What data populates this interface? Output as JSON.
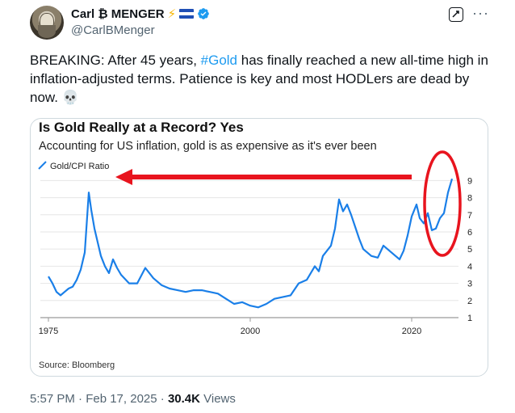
{
  "author": {
    "display_name": "Carl ₿ MENGER",
    "handle": "@CarlBMenger",
    "icons": [
      "lightning-icon",
      "el-salvador-flag-icon",
      "verified-badge-icon"
    ]
  },
  "tweet": {
    "text_before": "BREAKING: After 45 years, ",
    "hashtag": "#Gold",
    "text_after": " has finally reached a new all-time high in inflation-adjusted terms. Patience is key and most HODLers are dead by now. 💀"
  },
  "meta": {
    "time": "5:57 PM · Feb 17, 2025 · ",
    "views_count": "30.4K",
    "views_label": " Views"
  },
  "chart_data": {
    "type": "line",
    "title": "Is Gold Really at a Record? Yes",
    "subtitle": "Accounting for US inflation, gold is as expensive as it's ever been",
    "legend": "Gold/CPI Ratio",
    "source": "Source: Bloomberg",
    "x_ticks": [
      "1975",
      "2000",
      "2020"
    ],
    "x_tick_values": [
      1975,
      2000,
      2020
    ],
    "y_ticks": [
      "1",
      "2",
      "3",
      "4",
      "5",
      "6",
      "7",
      "8",
      "9"
    ],
    "ylim": [
      1,
      9.3
    ],
    "xlim": [
      1974,
      2025.3
    ],
    "series": [
      {
        "name": "Gold/CPI Ratio",
        "x": [
          1975,
          1975.5,
          1976,
          1976.5,
          1977,
          1977.5,
          1978,
          1978.5,
          1979,
          1979.5,
          1980,
          1980.3,
          1980.7,
          1981,
          1981.5,
          1982,
          1982.5,
          1983,
          1983.5,
          1984,
          1985,
          1986,
          1987,
          1988,
          1989,
          1990,
          1991,
          1992,
          1993,
          1994,
          1995,
          1996,
          1997,
          1998,
          1999,
          2000,
          2001,
          2002,
          2003,
          2004,
          2005,
          2006,
          2007,
          2008,
          2008.5,
          2009,
          2010,
          2010.5,
          2011,
          2011.5,
          2012,
          2012.5,
          2013,
          2013.5,
          2014,
          2015,
          2015.8,
          2016.5,
          2017,
          2018,
          2018.5,
          2019,
          2019.5,
          2020,
          2020.6,
          2021,
          2021.5,
          2022,
          2022.5,
          2023,
          2023.5,
          2024,
          2024.5,
          2025
        ],
        "y": [
          3.4,
          3.0,
          2.5,
          2.3,
          2.5,
          2.7,
          2.8,
          3.2,
          3.8,
          4.8,
          8.3,
          7.3,
          6.2,
          5.6,
          4.6,
          4.0,
          3.6,
          4.4,
          3.9,
          3.5,
          3.0,
          3.0,
          3.9,
          3.3,
          2.9,
          2.7,
          2.6,
          2.5,
          2.6,
          2.6,
          2.5,
          2.4,
          2.1,
          1.8,
          1.9,
          1.7,
          1.6,
          1.8,
          2.1,
          2.2,
          2.3,
          3.0,
          3.2,
          4.0,
          3.7,
          4.6,
          5.2,
          6.2,
          7.9,
          7.2,
          7.6,
          7.0,
          6.3,
          5.6,
          5.0,
          4.6,
          4.5,
          5.2,
          5.0,
          4.6,
          4.4,
          4.9,
          5.8,
          6.9,
          7.6,
          6.8,
          6.5,
          7.1,
          6.1,
          6.2,
          6.8,
          7.1,
          8.3,
          9.1
        ]
      }
    ],
    "annotations": [
      "red-arrow-pointing-left",
      "red-circle-highlight"
    ],
    "colors": {
      "line": "#1a7fe8",
      "annotation": "#e8141e",
      "title": "#111111"
    }
  }
}
